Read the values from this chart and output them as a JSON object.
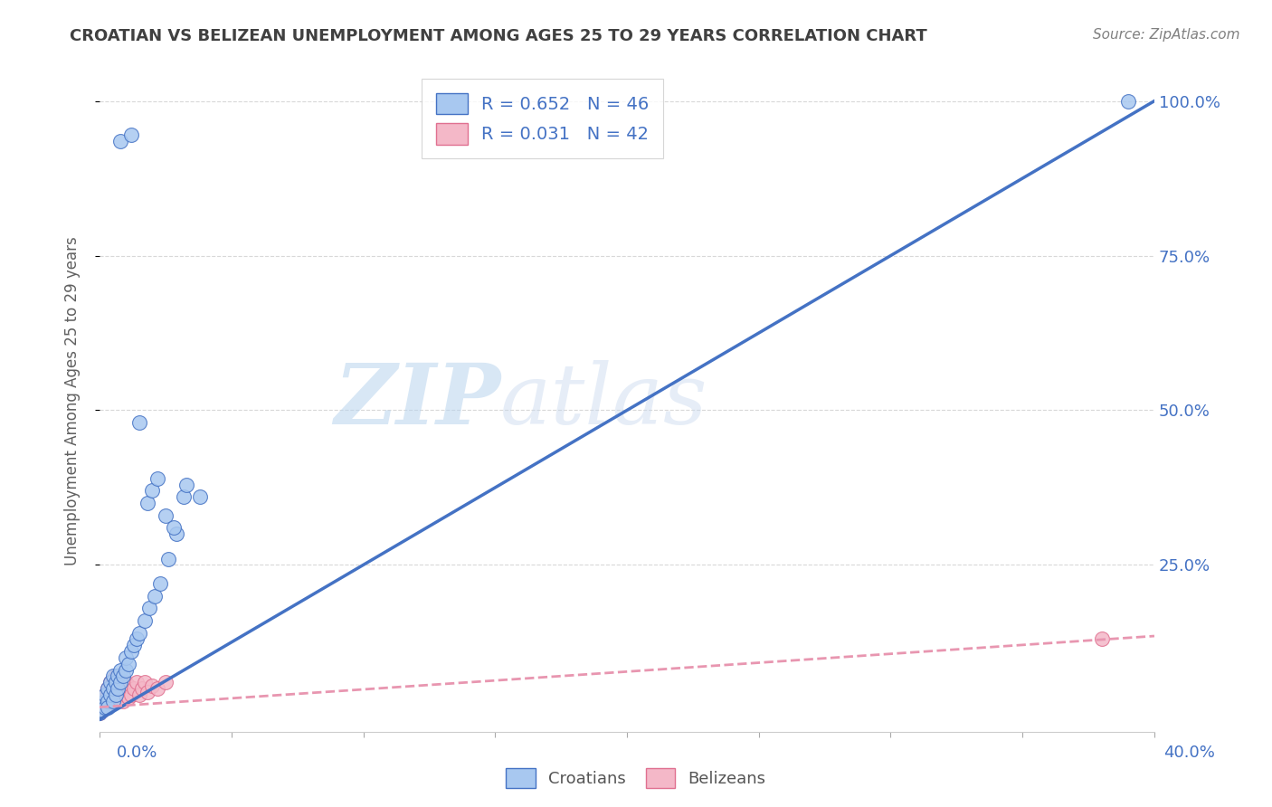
{
  "title": "CROATIAN VS BELIZEAN UNEMPLOYMENT AMONG AGES 25 TO 29 YEARS CORRELATION CHART",
  "source": "Source: ZipAtlas.com",
  "ylabel": "Unemployment Among Ages 25 to 29 years",
  "ytick_labels": [
    "25.0%",
    "50.0%",
    "75.0%",
    "100.0%"
  ],
  "ytick_vals": [
    0.25,
    0.5,
    0.75,
    1.0
  ],
  "watermark_zip": "ZIP",
  "watermark_atlas": "atlas",
  "croatian_R": 0.652,
  "croatian_N": 46,
  "belizean_R": 0.031,
  "belizean_N": 42,
  "blue_fill": "#A8C8F0",
  "blue_edge": "#4472C4",
  "pink_fill": "#F4B8C8",
  "pink_edge": "#E07090",
  "blue_line": "#4472C4",
  "pink_line": "#E896B0",
  "title_color": "#404040",
  "source_color": "#808080",
  "axis_label_color": "#4472C4",
  "ylabel_color": "#606060",
  "grid_color": "#D8D8D8",
  "background_color": "#FFFFFF",
  "xlim": [
    0.0,
    0.4
  ],
  "ylim": [
    -0.02,
    1.05
  ],
  "cr_line_x": [
    0.0,
    0.4
  ],
  "cr_line_y": [
    0.0,
    1.0
  ],
  "bz_line_x": [
    0.0,
    0.4
  ],
  "bz_line_y": [
    0.02,
    0.135
  ],
  "cr_x": [
    0.0,
    0.001,
    0.001,
    0.002,
    0.002,
    0.002,
    0.003,
    0.003,
    0.003,
    0.004,
    0.004,
    0.005,
    0.005,
    0.005,
    0.006,
    0.006,
    0.007,
    0.007,
    0.008,
    0.008,
    0.009,
    0.01,
    0.01,
    0.011,
    0.012,
    0.013,
    0.014,
    0.015,
    0.017,
    0.019,
    0.021,
    0.023,
    0.026,
    0.029,
    0.032,
    0.018,
    0.02,
    0.022,
    0.025,
    0.028,
    0.033,
    0.038,
    0.008,
    0.012,
    0.39,
    0.015
  ],
  "cr_y": [
    0.01,
    0.02,
    0.015,
    0.03,
    0.02,
    0.04,
    0.03,
    0.05,
    0.02,
    0.04,
    0.06,
    0.03,
    0.05,
    0.07,
    0.04,
    0.06,
    0.05,
    0.07,
    0.06,
    0.08,
    0.07,
    0.08,
    0.1,
    0.09,
    0.11,
    0.12,
    0.13,
    0.14,
    0.16,
    0.18,
    0.2,
    0.22,
    0.26,
    0.3,
    0.36,
    0.35,
    0.37,
    0.39,
    0.33,
    0.31,
    0.38,
    0.36,
    0.935,
    0.945,
    1.0,
    0.48
  ],
  "bz_x": [
    0.0,
    0.0,
    0.001,
    0.001,
    0.001,
    0.002,
    0.002,
    0.002,
    0.003,
    0.003,
    0.003,
    0.004,
    0.004,
    0.004,
    0.005,
    0.005,
    0.005,
    0.006,
    0.006,
    0.006,
    0.007,
    0.007,
    0.007,
    0.008,
    0.008,
    0.009,
    0.009,
    0.01,
    0.01,
    0.011,
    0.011,
    0.012,
    0.013,
    0.014,
    0.015,
    0.016,
    0.017,
    0.018,
    0.02,
    0.022,
    0.025,
    0.38
  ],
  "bz_y": [
    0.01,
    0.02,
    0.015,
    0.025,
    0.03,
    0.02,
    0.035,
    0.04,
    0.025,
    0.04,
    0.05,
    0.03,
    0.045,
    0.06,
    0.035,
    0.05,
    0.065,
    0.04,
    0.055,
    0.07,
    0.03,
    0.05,
    0.065,
    0.04,
    0.06,
    0.03,
    0.055,
    0.04,
    0.06,
    0.035,
    0.055,
    0.04,
    0.05,
    0.06,
    0.04,
    0.05,
    0.06,
    0.045,
    0.055,
    0.05,
    0.06,
    0.13
  ]
}
